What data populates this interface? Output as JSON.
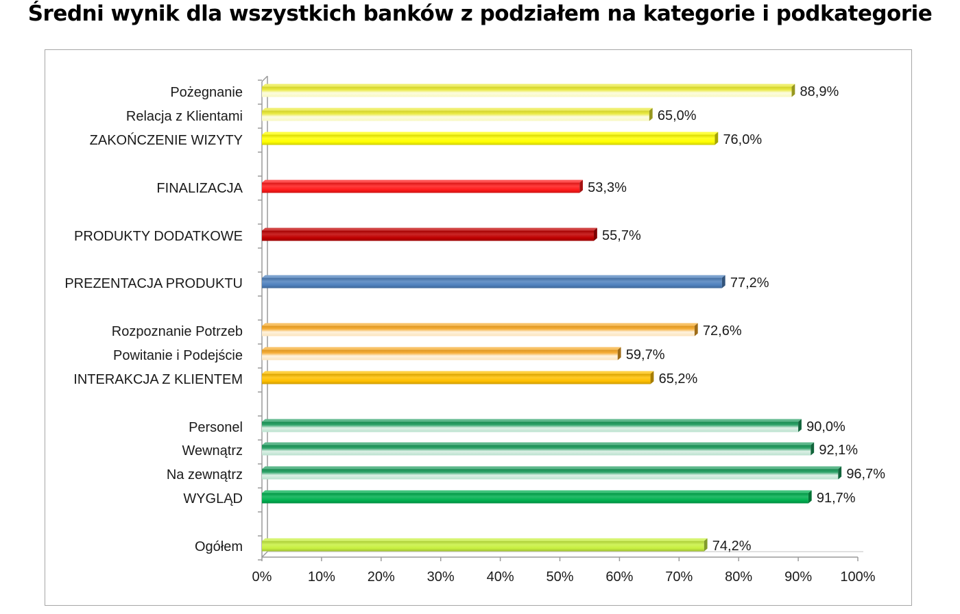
{
  "chart_data": {
    "type": "bar",
    "orientation": "horizontal",
    "title": "Średni wynik dla wszystkich banków z podziałem na kategorie i podkategorie",
    "xlabel": "",
    "ylabel": "",
    "xlim": [
      0,
      100
    ],
    "grid": false,
    "legend": "none",
    "x_ticks": [
      "0%",
      "10%",
      "20%",
      "30%",
      "40%",
      "50%",
      "60%",
      "70%",
      "80%",
      "90%",
      "100%"
    ],
    "bars": [
      {
        "label": "Pożegnanie",
        "value": 88.9,
        "value_label": "88,9%",
        "color": "#e8e830",
        "style": "light"
      },
      {
        "label": "Relacja z Klientami",
        "value": 65.0,
        "value_label": "65,0%",
        "color": "#e8e830",
        "style": "light"
      },
      {
        "label": "ZAKOŃCZENIE WIZYTY",
        "value": 76.0,
        "value_label": "76,0%",
        "color": "#ffff00",
        "style": "solid"
      },
      {
        "label": "FINALIZACJA",
        "value": 53.3,
        "value_label": "53,3%",
        "color": "#ff1a1a",
        "style": "solid"
      },
      {
        "label": "PRODUKTY DODATKOWE",
        "value": 55.7,
        "value_label": "55,7%",
        "color": "#c00000",
        "style": "solid"
      },
      {
        "label": "PREZENTACJA PRODUKTU",
        "value": 77.2,
        "value_label": "77,2%",
        "color": "#4f81bd",
        "style": "solid"
      },
      {
        "label": "Rozpoznanie Potrzeb",
        "value": 72.6,
        "value_label": "72,6%",
        "color": "#f5a623",
        "style": "light"
      },
      {
        "label": "Powitanie i Podejście",
        "value": 59.7,
        "value_label": "59,7%",
        "color": "#f5a623",
        "style": "light"
      },
      {
        "label": "INTERAKCJA Z KLIENTEM",
        "value": 65.2,
        "value_label": "65,2%",
        "color": "#ffc000",
        "style": "solid"
      },
      {
        "label": "Personel",
        "value": 90.0,
        "value_label": "90,0%",
        "color": "#1a9a5a",
        "style": "light"
      },
      {
        "label": "Wewnątrz",
        "value": 92.1,
        "value_label": "92,1%",
        "color": "#1a9a5a",
        "style": "light"
      },
      {
        "label": "Na zewnątrz",
        "value": 96.7,
        "value_label": "96,7%",
        "color": "#1a9a5a",
        "style": "light"
      },
      {
        "label": "WYGLĄD",
        "value": 91.7,
        "value_label": "91,7%",
        "color": "#00b050",
        "style": "solid"
      },
      {
        "label": "Ogółem",
        "value": 74.2,
        "value_label": "74,2%",
        "color": "#c8f040",
        "style": "solid"
      }
    ]
  }
}
